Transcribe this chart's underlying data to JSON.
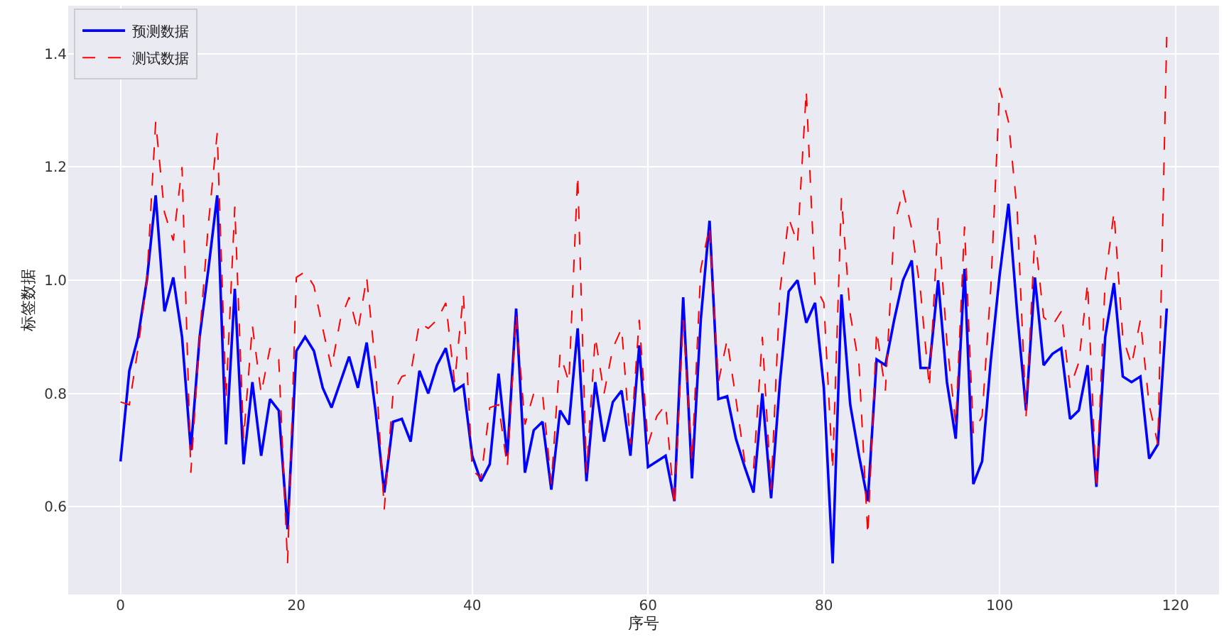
{
  "chart_data": {
    "type": "line",
    "xlabel": "序号",
    "ylabel": "标签数据",
    "x": [
      0,
      1,
      2,
      3,
      4,
      5,
      6,
      7,
      8,
      9,
      10,
      11,
      12,
      13,
      14,
      15,
      16,
      17,
      18,
      19,
      20,
      21,
      22,
      23,
      24,
      25,
      26,
      27,
      28,
      29,
      30,
      31,
      32,
      33,
      34,
      35,
      36,
      37,
      38,
      39,
      40,
      41,
      42,
      43,
      44,
      45,
      46,
      47,
      48,
      49,
      50,
      51,
      52,
      53,
      54,
      55,
      56,
      57,
      58,
      59,
      60,
      61,
      62,
      63,
      64,
      65,
      66,
      67,
      68,
      69,
      70,
      71,
      72,
      73,
      74,
      75,
      76,
      77,
      78,
      79,
      80,
      81,
      82,
      83,
      84,
      85,
      86,
      87,
      88,
      89,
      90,
      91,
      92,
      93,
      94,
      95,
      96,
      97,
      98,
      99,
      100,
      101,
      102,
      103,
      104,
      105,
      106,
      107,
      108,
      109,
      110,
      111,
      112,
      113,
      114,
      115,
      116,
      117,
      118,
      119
    ],
    "series": [
      {
        "name": "预测数据",
        "color": "#0000ff",
        "line_style": "solid",
        "values": [
          0.68,
          0.84,
          0.9,
          1.0,
          1.15,
          0.945,
          1.005,
          0.9,
          0.7,
          0.9,
          1.02,
          1.15,
          0.71,
          0.985,
          0.675,
          0.82,
          0.69,
          0.79,
          0.77,
          0.56,
          0.875,
          0.9,
          0.875,
          0.81,
          0.775,
          0.82,
          0.865,
          0.81,
          0.89,
          0.77,
          0.625,
          0.75,
          0.755,
          0.715,
          0.84,
          0.8,
          0.85,
          0.88,
          0.805,
          0.815,
          0.69,
          0.645,
          0.675,
          0.835,
          0.69,
          0.95,
          0.66,
          0.735,
          0.75,
          0.63,
          0.77,
          0.745,
          0.915,
          0.645,
          0.82,
          0.715,
          0.785,
          0.805,
          0.69,
          0.885,
          0.67,
          0.68,
          0.69,
          0.61,
          0.97,
          0.65,
          0.93,
          1.105,
          0.79,
          0.795,
          0.72,
          0.67,
          0.625,
          0.8,
          0.615,
          0.82,
          0.98,
          1.0,
          0.925,
          0.96,
          0.81,
          0.5,
          0.975,
          0.78,
          0.69,
          0.61,
          0.86,
          0.85,
          0.93,
          1.0,
          1.035,
          0.845,
          0.845,
          1.0,
          0.82,
          0.72,
          1.02,
          0.64,
          0.68,
          0.86,
          1.01,
          1.135,
          0.94,
          0.77,
          1.005,
          0.85,
          0.87,
          0.88,
          0.755,
          0.77,
          0.85,
          0.635,
          0.9,
          0.995,
          0.83,
          0.82,
          0.83,
          0.685,
          0.71,
          0.95
        ]
      },
      {
        "name": "测试数据",
        "color": "#ff0000",
        "line_style": "dashed",
        "values": [
          0.785,
          0.78,
          0.88,
          1.0,
          1.28,
          1.12,
          1.07,
          1.2,
          0.66,
          0.9,
          1.1,
          1.26,
          0.79,
          1.13,
          0.72,
          0.92,
          0.8,
          0.88,
          0.86,
          0.5,
          1.005,
          1.015,
          0.99,
          0.915,
          0.845,
          0.93,
          0.97,
          0.91,
          1.005,
          0.85,
          0.595,
          0.8,
          0.83,
          0.835,
          0.925,
          0.915,
          0.93,
          0.96,
          0.82,
          0.975,
          0.665,
          0.65,
          0.775,
          0.78,
          0.67,
          0.94,
          0.745,
          0.8,
          0.8,
          0.64,
          0.87,
          0.82,
          1.185,
          0.66,
          0.9,
          0.8,
          0.88,
          0.915,
          0.71,
          0.93,
          0.71,
          0.76,
          0.78,
          0.6,
          0.93,
          0.68,
          1.02,
          1.095,
          0.82,
          0.895,
          0.79,
          0.68,
          0.665,
          0.9,
          0.63,
          0.98,
          1.11,
          1.065,
          1.335,
          0.99,
          0.96,
          0.665,
          1.145,
          0.94,
          0.85,
          0.55,
          0.91,
          0.805,
          1.095,
          1.16,
          1.09,
          0.98,
          0.81,
          1.11,
          0.89,
          0.745,
          1.095,
          0.73,
          0.76,
          0.99,
          1.34,
          1.28,
          1.12,
          0.76,
          1.08,
          0.935,
          0.92,
          0.945,
          0.81,
          0.855,
          0.995,
          0.63,
          1.0,
          1.12,
          0.9,
          0.85,
          0.93,
          0.78,
          0.71,
          1.43
        ]
      }
    ],
    "xlim": [
      -5.95,
      124.95
    ],
    "xticks": [
      0,
      20,
      40,
      60,
      80,
      100,
      120
    ],
    "ylim": [
      0.445,
      1.485
    ],
    "yticks": [
      {
        "value": 0.6,
        "label": "0.6"
      },
      {
        "value": 0.8,
        "label": "0.8"
      },
      {
        "value": 1.0,
        "label": "1.0"
      },
      {
        "value": 1.2,
        "label": "1.2"
      },
      {
        "value": 1.4,
        "label": "1.4"
      }
    ],
    "grid": true,
    "legend": "top left"
  }
}
